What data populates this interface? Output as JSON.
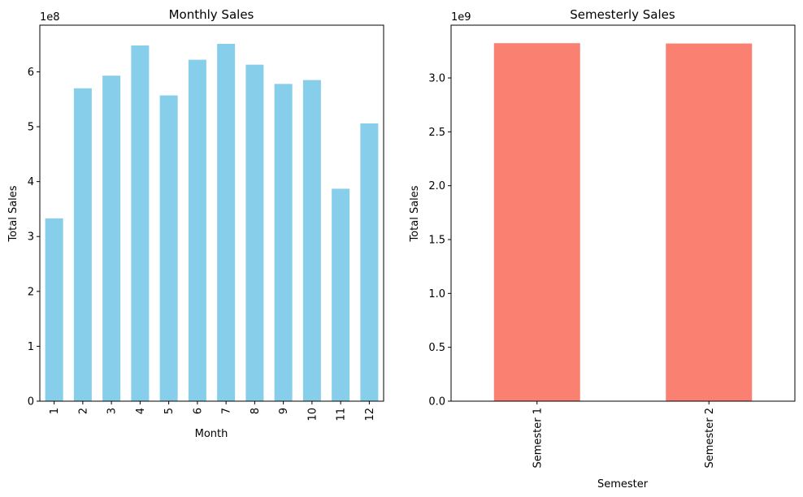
{
  "chart_data": [
    {
      "type": "bar",
      "title": "Monthly Sales",
      "xlabel": "Month",
      "ylabel": "Total Sales",
      "offset_label": "1e8",
      "scale": 100000000,
      "categories": [
        "1",
        "2",
        "3",
        "4",
        "5",
        "6",
        "7",
        "8",
        "9",
        "10",
        "11",
        "12"
      ],
      "values": [
        333000000,
        570000000,
        593000000,
        648000000,
        557000000,
        622000000,
        651000000,
        613000000,
        578000000,
        585000000,
        387000000,
        506000000
      ],
      "ylim": [
        0,
        685000000
      ],
      "yticks": [
        0,
        100000000,
        200000000,
        300000000,
        400000000,
        500000000,
        600000000
      ],
      "ytick_labels": [
        "0",
        "1",
        "2",
        "3",
        "4",
        "5",
        "6"
      ],
      "color": "#87CEEB",
      "grid": false,
      "xtick_rotation": 90
    },
    {
      "type": "bar",
      "title": "Semesterly Sales",
      "xlabel": "Semester",
      "ylabel": "Total Sales",
      "offset_label": "1e9",
      "scale": 1000000000,
      "categories": [
        "Semester 1",
        "Semester 2"
      ],
      "values": [
        3323000000,
        3320000000
      ],
      "ylim": [
        0,
        3490000000
      ],
      "yticks": [
        0,
        500000000,
        1000000000,
        1500000000,
        2000000000,
        2500000000,
        3000000000
      ],
      "ytick_labels": [
        "0.0",
        "0.5",
        "1.0",
        "1.5",
        "2.0",
        "2.5",
        "3.0"
      ],
      "color": "#FA8072",
      "grid": false,
      "xtick_rotation": 90
    }
  ]
}
